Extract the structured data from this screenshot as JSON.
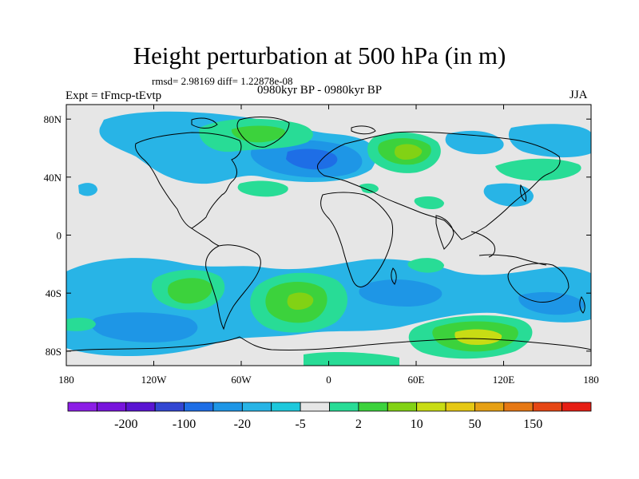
{
  "title": "Height perturbation at 500 hPa (in m)",
  "stats": "rmsd= 2.98169 diff= 1.22878e-08",
  "left_label": "Expt = tFmcp-tEvtp",
  "center_label": "0980kyr BP - 0980kyr BP",
  "right_label": "JJA",
  "map": {
    "type": "filled-contour",
    "projection": "cylindrical-equidistant",
    "lon_range": [
      -180,
      180
    ],
    "lat_range": [
      -90,
      90
    ],
    "lat_tick_labels": [
      "80N",
      "40N",
      "0",
      "40S",
      "80S"
    ],
    "lon_tick_labels": [
      "180",
      "120W",
      "60W",
      "0",
      "60E",
      "120E",
      "180"
    ],
    "background_color": "#e6e6e6"
  },
  "colorbar": {
    "labels": [
      "-200",
      "-100",
      "-20",
      "-5",
      "2",
      "10",
      "50",
      "150"
    ],
    "colors": [
      "#8c1ee6",
      "#7814dc",
      "#5a14d2",
      "#3246d2",
      "#1e6ee6",
      "#1e96e6",
      "#28b4e6",
      "#1ec8dc",
      "#e6e6e6",
      "#28dc96",
      "#3cd23c",
      "#82d214",
      "#c8dc14",
      "#e6c814",
      "#e6a014",
      "#e67814",
      "#e64614",
      "#e61e14"
    ]
  }
}
